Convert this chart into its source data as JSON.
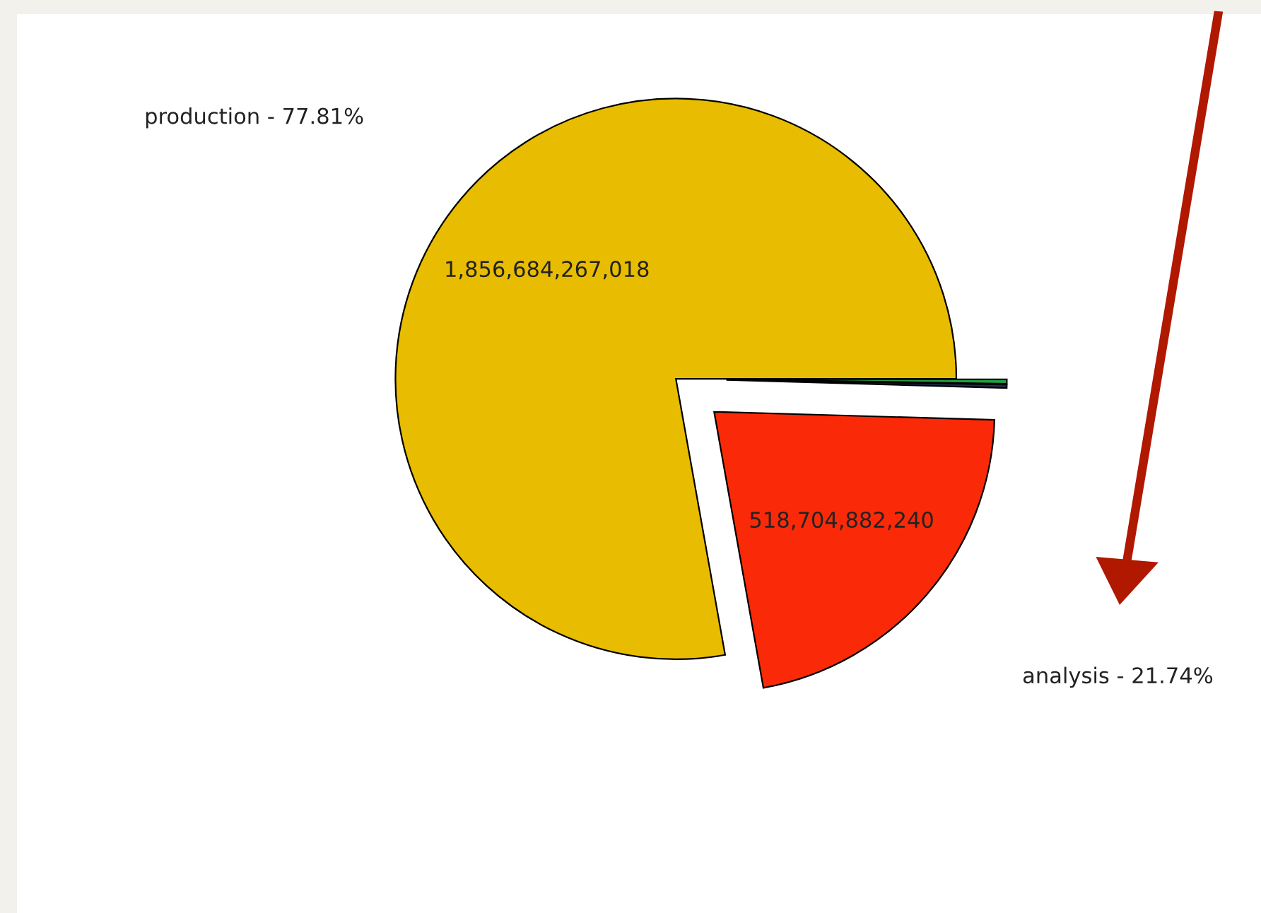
{
  "chart_data": {
    "type": "pie",
    "categories": [
      "production - 77.81%",
      "analysis - 21.74%",
      null,
      null
    ],
    "values": [
      1856684267018,
      518704882240,
      4800000000,
      6000000000
    ],
    "colors": [
      "#e8bc00",
      "#fa2a08",
      "#1a2e50",
      "#22a040"
    ],
    "value_labels": [
      "1,856,684,267,018",
      "518,704,882,240",
      null,
      null
    ]
  }
}
